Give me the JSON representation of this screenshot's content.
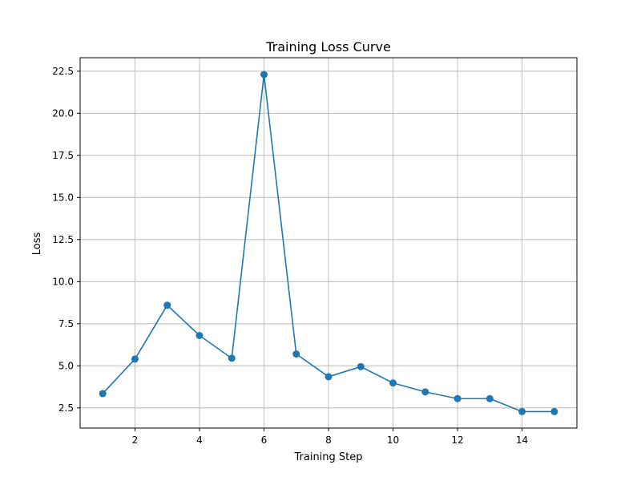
{
  "chart_data": {
    "type": "line",
    "title": "Training Loss Curve",
    "xlabel": "Training Step",
    "ylabel": "Loss",
    "xlim": [
      0.3,
      15.7
    ],
    "ylim": [
      1.3,
      23.3
    ],
    "xticks": [
      2,
      4,
      6,
      8,
      10,
      12,
      14
    ],
    "yticks": [
      2.5,
      5.0,
      7.5,
      10.0,
      12.5,
      15.0,
      17.5,
      20.0,
      22.5
    ],
    "xtick_labels": [
      "2",
      "4",
      "6",
      "8",
      "10",
      "12",
      "14"
    ],
    "ytick_labels": [
      "2.5",
      "5.0",
      "7.5",
      "10.0",
      "12.5",
      "15.0",
      "17.5",
      "20.0",
      "22.5"
    ],
    "grid": true,
    "marker": "circle",
    "series": [
      {
        "color": "#1f77b4",
        "x": [
          1,
          2,
          3,
          4,
          5,
          6,
          7,
          8,
          9,
          10,
          11,
          12,
          13,
          14,
          15
        ],
        "y": [
          3.35,
          5.4,
          8.6,
          6.8,
          5.45,
          22.3,
          5.7,
          4.35,
          4.95,
          3.98,
          3.45,
          3.05,
          3.05,
          2.28,
          2.28
        ]
      }
    ]
  }
}
